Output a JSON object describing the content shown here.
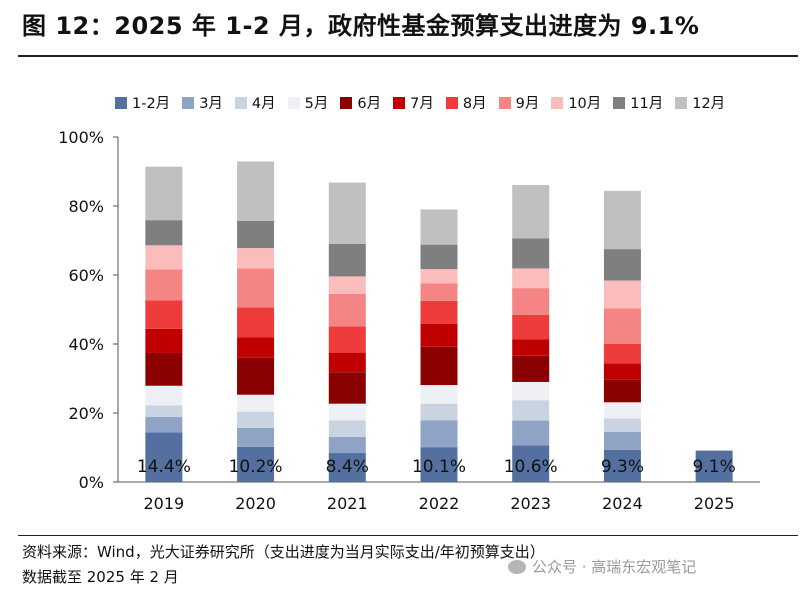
{
  "title": "图 12：2025 年 1-2 月，政府性基金预算支出进度为 9.1%",
  "chart_data": {
    "type": "bar",
    "stacked": true,
    "categories": [
      "2019",
      "2020",
      "2021",
      "2022",
      "2023",
      "2024",
      "2025"
    ],
    "y_ticks": [
      "0%",
      "20%",
      "40%",
      "60%",
      "80%",
      "100%"
    ],
    "ylim": [
      0,
      100
    ],
    "legend_position": "top",
    "series": [
      {
        "name": "1-2月",
        "color": "#5470a0",
        "values": [
          14.4,
          10.2,
          8.4,
          10.1,
          10.6,
          9.3,
          9.1
        ]
      },
      {
        "name": "3月",
        "color": "#8fa3c4",
        "values": [
          4.5,
          5.5,
          4.7,
          7.8,
          7.2,
          5.2,
          null
        ]
      },
      {
        "name": "4月",
        "color": "#c9d3e2",
        "values": [
          3.3,
          4.7,
          4.8,
          4.8,
          5.9,
          3.9,
          null
        ]
      },
      {
        "name": "5月",
        "color": "#eef0f5",
        "values": [
          5.7,
          4.9,
          4.8,
          5.4,
          5.3,
          4.7,
          null
        ]
      },
      {
        "name": "6月",
        "color": "#8b0000",
        "values": [
          9.5,
          10.7,
          9.1,
          11.1,
          7.6,
          6.5,
          null
        ]
      },
      {
        "name": "7月",
        "color": "#c00000",
        "values": [
          7.0,
          5.9,
          5.7,
          6.6,
          4.8,
          4.8,
          null
        ]
      },
      {
        "name": "8月",
        "color": "#ee3b3b",
        "values": [
          8.2,
          8.7,
          7.6,
          6.7,
          7.0,
          5.6,
          null
        ]
      },
      {
        "name": "9月",
        "color": "#f58585",
        "values": [
          9.0,
          11.3,
          9.4,
          5.1,
          7.8,
          10.3,
          null
        ]
      },
      {
        "name": "10月",
        "color": "#fbbcbc",
        "values": [
          7.0,
          5.9,
          5.1,
          4.1,
          5.7,
          8.1,
          null
        ]
      },
      {
        "name": "11月",
        "color": "#7f7f7f",
        "values": [
          7.3,
          7.9,
          9.4,
          7.1,
          8.7,
          9.1,
          null
        ]
      },
      {
        "name": "12月",
        "color": "#c0c0c0",
        "values": [
          15.5,
          17.2,
          17.8,
          10.2,
          15.5,
          16.9,
          null
        ]
      }
    ],
    "data_labels": [
      "14.4%",
      "10.2%",
      "8.4%",
      "10.1%",
      "10.6%",
      "9.3%",
      "9.1%"
    ]
  },
  "source_line1": "资料来源：Wind，光大证券研究所（支出进度为当月实际支出/年初预算支出）",
  "source_line2": "数据截至 2025 年 2 月",
  "watermark": "公众号 · 高瑞东宏观笔记"
}
